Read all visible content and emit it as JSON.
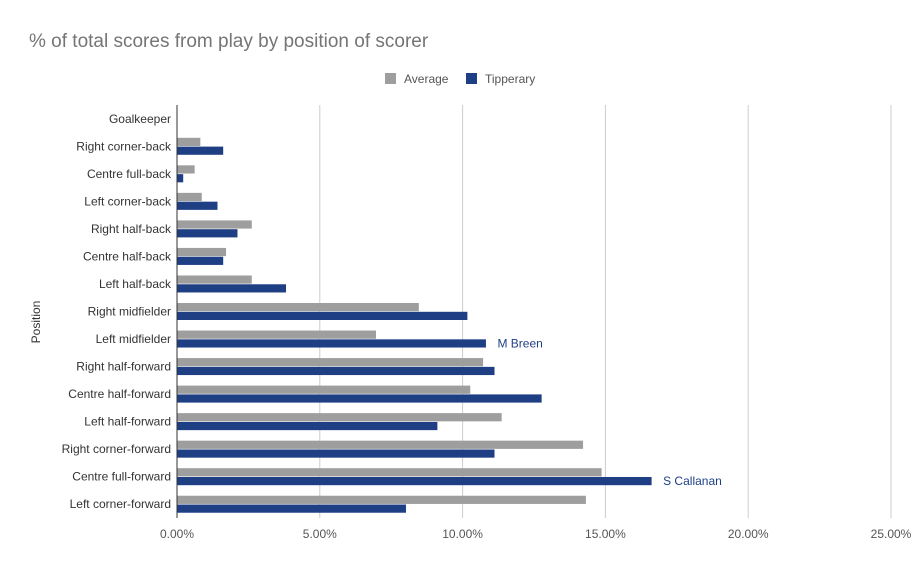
{
  "chart_data": {
    "type": "bar",
    "orientation": "horizontal",
    "title": "% of total scores from play by position of scorer",
    "ylabel": "Position",
    "xlabel": "",
    "xlim": [
      0,
      0.25
    ],
    "xticks": [
      0,
      0.05,
      0.1,
      0.15,
      0.2,
      0.25
    ],
    "xtick_labels": [
      "0.00%",
      "5.00%",
      "10.00%",
      "15.00%",
      "20.00%",
      "25.00%"
    ],
    "grid": true,
    "legend_position": "top",
    "categories": [
      "Goalkeeper",
      "Right corner-back",
      "Centre full-back",
      "Left corner-back",
      "Right half-back",
      "Centre half-back",
      "Left half-back",
      "Right midfielder",
      "Left midfielder",
      "Right half-forward",
      "Centre half-forward",
      "Left half-forward",
      "Right corner-forward",
      "Centre full-forward",
      "Left corner-forward"
    ],
    "series": [
      {
        "name": "Average",
        "color": "#9e9e9e",
        "values": [
          0,
          0.008,
          0.006,
          0.0085,
          0.026,
          0.017,
          0.026,
          0.0845,
          0.0695,
          0.107,
          0.1025,
          0.1135,
          0.142,
          0.1485,
          0.143
        ]
      },
      {
        "name": "Tipperary",
        "color": "#1f3f85",
        "values": [
          0,
          0.016,
          0.002,
          0.014,
          0.021,
          0.016,
          0.038,
          0.1015,
          0.108,
          0.111,
          0.1275,
          0.091,
          0.111,
          0.166,
          0.08
        ]
      }
    ],
    "annotations": [
      {
        "text": "M Breen",
        "category": "Left midfielder",
        "series": "Tipperary",
        "color": "#1f3f85"
      },
      {
        "text": "S Callanan",
        "category": "Centre full-forward",
        "series": "Tipperary",
        "color": "#1f3f85"
      }
    ]
  }
}
